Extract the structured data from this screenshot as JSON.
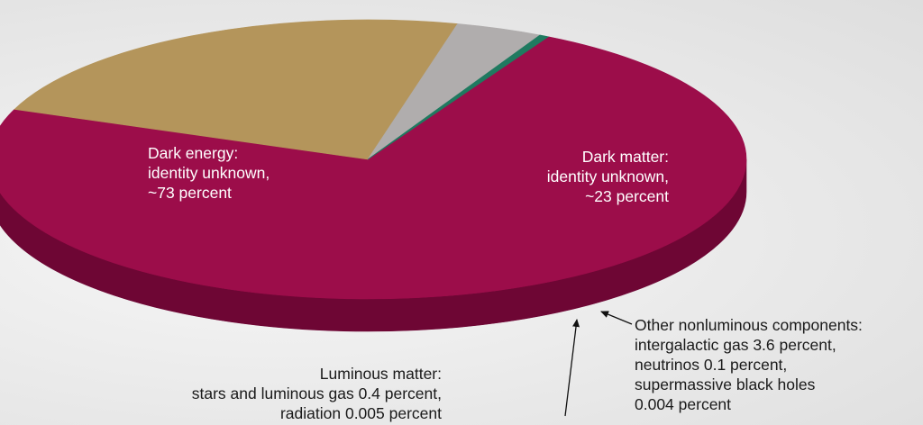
{
  "chart_data": {
    "type": "pie",
    "style": "3d",
    "title": "",
    "slices": [
      {
        "name": "Dark energy",
        "value": 73,
        "color": "#9c0d4a",
        "side_color": "#6e0634"
      },
      {
        "name": "Dark matter",
        "value": 23,
        "color": "#b4955b",
        "side_color": "#7b6235"
      },
      {
        "name": "Other nonluminous components",
        "value": 3.704,
        "color": "#b0adad",
        "side_color": "#858282"
      },
      {
        "name": "Luminous matter",
        "value": 0.405,
        "color": "#1f7a60",
        "side_color": "#145443"
      }
    ]
  },
  "labels": {
    "dark_energy": [
      "Dark energy:",
      "identity unknown,",
      "~73 percent"
    ],
    "dark_matter": [
      "Dark matter:",
      "identity unknown,",
      "~23 percent"
    ],
    "other": [
      "Other nonluminous components:",
      "intergalactic gas 3.6 percent,",
      "neutrinos 0.1 percent,",
      "supermassive black holes",
      "0.004 percent"
    ],
    "luminous": [
      "Luminous matter:",
      "stars and luminous gas 0.4 percent,",
      "radiation 0.005 percent"
    ]
  },
  "colors": {
    "pointer": "#111111"
  }
}
